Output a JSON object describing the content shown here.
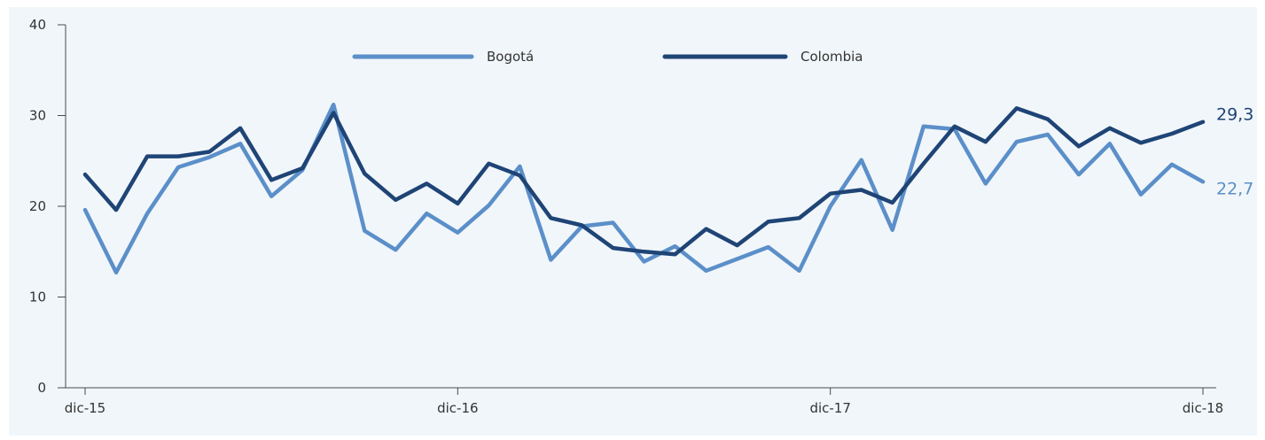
{
  "chart_data": {
    "type": "line",
    "title": "",
    "xlabel": "",
    "ylabel": "",
    "ylim": [
      0,
      40
    ],
    "y_ticks": [
      "0",
      "10",
      "20",
      "30",
      "40"
    ],
    "x_tick_labels": [
      "dic-15",
      "dic-16",
      "dic-17",
      "dic-18"
    ],
    "x": [
      "dic-15",
      "ene-16",
      "feb-16",
      "mar-16",
      "abr-16",
      "may-16",
      "jun-16",
      "jul-16",
      "ago-16",
      "sep-16",
      "oct-16",
      "nov-16",
      "dic-16",
      "ene-17",
      "feb-17",
      "mar-17",
      "abr-17",
      "may-17",
      "jun-17",
      "jul-17",
      "ago-17",
      "sep-17",
      "oct-17",
      "nov-17",
      "dic-17",
      "ene-18",
      "feb-18",
      "mar-18",
      "abr-18",
      "may-18",
      "jun-18",
      "jul-18",
      "ago-18",
      "sep-18",
      "oct-18",
      "nov-18",
      "dic-18"
    ],
    "series": [
      {
        "name": "Bogotá",
        "color": "#5b8fc9",
        "end_label": "22,7",
        "values": [
          19.6,
          12.7,
          19.2,
          24.3,
          25.4,
          26.9,
          21.1,
          24.0,
          31.2,
          17.3,
          15.2,
          19.2,
          17.1,
          20.1,
          24.4,
          14.1,
          17.8,
          18.2,
          13.9,
          15.6,
          12.9,
          14.2,
          15.5,
          12.9,
          20.0,
          25.1,
          17.4,
          28.8,
          28.5,
          22.5,
          27.1,
          27.9,
          23.5,
          26.9,
          21.3,
          24.6,
          22.7
        ]
      },
      {
        "name": "Colombia",
        "color": "#1f4476",
        "end_label": "29,3",
        "values": [
          23.5,
          19.6,
          25.5,
          25.5,
          26.0,
          28.6,
          22.9,
          24.2,
          30.3,
          23.6,
          20.7,
          22.5,
          20.3,
          24.7,
          23.4,
          18.7,
          17.9,
          15.4,
          15.0,
          14.7,
          17.5,
          15.7,
          18.3,
          18.7,
          21.4,
          21.8,
          20.4,
          24.7,
          28.8,
          27.1,
          30.8,
          29.6,
          26.6,
          28.6,
          27.0,
          28.0,
          29.3
        ]
      }
    ],
    "legend_position": "top-center",
    "grid": false
  }
}
